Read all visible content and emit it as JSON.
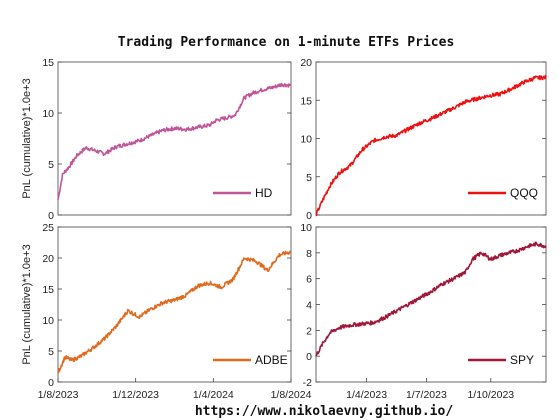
{
  "page": {
    "title": "Trading Performance on 1-minute ETFs Prices",
    "footer": "https://www.nikolaevny.github.io/"
  },
  "chart_data": [
    {
      "type": "line",
      "name": "hd",
      "series": [
        {
          "name": "HD",
          "color": "#c0559a",
          "x": [
            0,
            0.02,
            0.05,
            0.08,
            0.12,
            0.16,
            0.2,
            0.25,
            0.3,
            0.35,
            0.4,
            0.45,
            0.5,
            0.55,
            0.6,
            0.65,
            0.68,
            0.72,
            0.76,
            0.8,
            0.84,
            0.88,
            0.92,
            0.96,
            1.0
          ],
          "values": [
            1.5,
            4.0,
            4.8,
            5.8,
            6.6,
            6.3,
            6.0,
            6.7,
            7.0,
            7.3,
            7.8,
            8.3,
            8.5,
            8.4,
            8.6,
            8.8,
            9.3,
            9.5,
            9.8,
            11.5,
            12.0,
            12.3,
            12.5,
            12.8,
            12.7
          ]
        }
      ],
      "ylabel": "PnL (cumulative)*1.0e+3",
      "ylim": [
        0,
        15
      ],
      "yticks": [
        0,
        5,
        10,
        15
      ],
      "xlim": [
        0,
        1
      ],
      "xticklabels": [],
      "legend": "bottom-right"
    },
    {
      "type": "line",
      "name": "qqq",
      "series": [
        {
          "name": "QQQ",
          "color": "#ee1111",
          "x": [
            0,
            0.03,
            0.06,
            0.1,
            0.15,
            0.2,
            0.25,
            0.3,
            0.35,
            0.4,
            0.45,
            0.5,
            0.55,
            0.6,
            0.65,
            0.7,
            0.75,
            0.8,
            0.85,
            0.9,
            0.95,
            1.0
          ],
          "values": [
            0.0,
            2.0,
            3.8,
            5.5,
            6.5,
            8.5,
            9.7,
            10.2,
            10.4,
            11.2,
            12.0,
            12.6,
            13.3,
            14.0,
            14.8,
            15.2,
            15.6,
            15.8,
            16.5,
            17.3,
            17.9,
            18.0
          ]
        }
      ],
      "ylabel": "",
      "ylim": [
        0,
        20
      ],
      "yticks": [
        0,
        5,
        10,
        15,
        20
      ],
      "xlim": [
        0,
        1
      ],
      "xticklabels": [],
      "legend": "bottom-right"
    },
    {
      "type": "line",
      "name": "adbe",
      "series": [
        {
          "name": "ADBE",
          "color": "#e06a1e",
          "x": [
            0,
            0.03,
            0.06,
            0.1,
            0.15,
            0.2,
            0.25,
            0.3,
            0.35,
            0.4,
            0.45,
            0.5,
            0.55,
            0.6,
            0.65,
            0.7,
            0.75,
            0.8,
            0.85,
            0.9,
            0.95,
            1.0
          ],
          "values": [
            1.5,
            4.0,
            3.5,
            4.2,
            5.5,
            7.0,
            9.0,
            11.5,
            10.5,
            11.8,
            12.8,
            13.2,
            14.0,
            15.5,
            16.0,
            15.3,
            16.5,
            20.0,
            19.5,
            18.0,
            20.5,
            21.0
          ]
        }
      ],
      "ylabel": "PnL (cumulative)*1.0e+3",
      "ylim": [
        0,
        25
      ],
      "yticks": [
        0,
        5,
        10,
        15,
        20,
        25
      ],
      "xlim": [
        0,
        1
      ],
      "xticks": [
        0,
        0.3333,
        0.6667,
        1
      ],
      "xticklabels": [
        "1/8/2023",
        "1/12/2023",
        "1/4/2024",
        "1/8/2024"
      ],
      "legend": "bottom-right"
    },
    {
      "type": "line",
      "name": "spy",
      "series": [
        {
          "name": "SPY",
          "color": "#a01838",
          "x": [
            0,
            0.03,
            0.06,
            0.1,
            0.15,
            0.2,
            0.25,
            0.3,
            0.35,
            0.4,
            0.45,
            0.5,
            0.55,
            0.6,
            0.65,
            0.68,
            0.72,
            0.76,
            0.8,
            0.84,
            0.88,
            0.92,
            0.96,
            1.0
          ],
          "values": [
            0.0,
            1.0,
            1.8,
            2.2,
            2.4,
            2.5,
            2.6,
            3.0,
            3.5,
            4.0,
            4.5,
            5.0,
            5.6,
            6.0,
            6.5,
            7.5,
            8.0,
            7.5,
            7.8,
            8.0,
            8.2,
            8.5,
            8.7,
            8.5
          ]
        }
      ],
      "ylabel": "",
      "ylim": [
        -2,
        10
      ],
      "yticks": [
        -2,
        0,
        2,
        4,
        6,
        8,
        10
      ],
      "xlim": [
        0,
        1
      ],
      "xticks": [
        0.22,
        0.48,
        0.76
      ],
      "xticklabels": [
        "1/4/2023",
        "1/7/2023",
        "1/10/2023"
      ],
      "legend": "bottom-right"
    }
  ]
}
